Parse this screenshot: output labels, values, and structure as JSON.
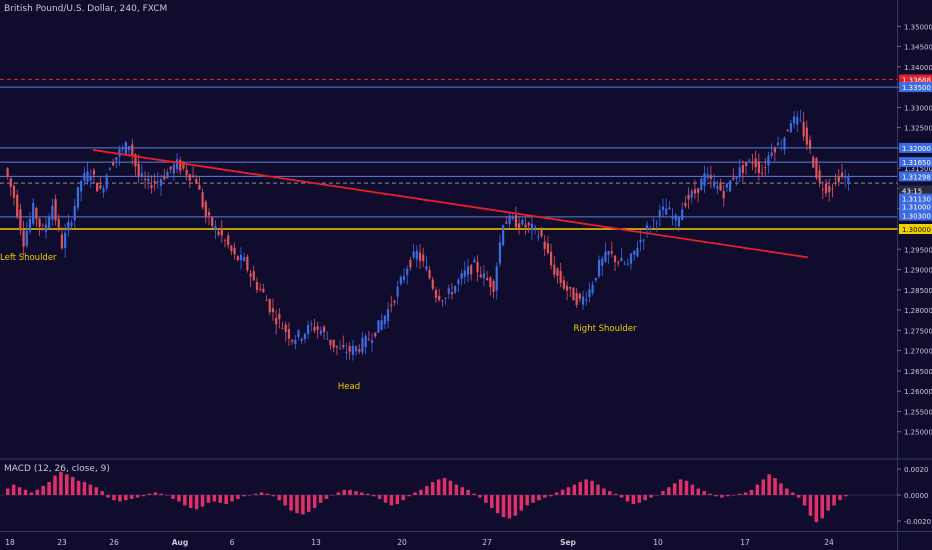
{
  "title": "British Pound/U.S. Dollar, 240, FXCM",
  "macd_label": "MACD (12, 26, close, 9)",
  "colors": {
    "background": "#0f0c2e",
    "up_candle": "#3d6be0",
    "down_candle": "#e0555a",
    "trendline": "#e8202a",
    "support_line": "#f0d000",
    "level_line": "#5f7fd6",
    "resistance_dashed": "#e02030",
    "macd_hist": "#e0306a",
    "axis_text": "#c9c9d6",
    "label_text": "#f0d000"
  },
  "chart_data": {
    "type": "candlestick",
    "title": "British Pound/U.S. Dollar, 240, FXCM",
    "symbol": "GBPUSD",
    "timeframe": "240",
    "ylim": [
      1.245,
      1.355
    ],
    "y_ticks": [
      "1.35000",
      "1.34500",
      "1.34000",
      "1.33500",
      "1.33000",
      "1.32500",
      "1.32000",
      "1.31500",
      "1.31000",
      "1.30500",
      "1.30000",
      "1.29500",
      "1.29000",
      "1.28500",
      "1.28000",
      "1.27500",
      "1.27000",
      "1.26500",
      "1.26000",
      "1.25500",
      "1.25000"
    ],
    "x_ticks": [
      "18",
      "23",
      "26",
      "Aug",
      "6",
      "13",
      "20",
      "27",
      "Sep",
      "10",
      "17",
      "24"
    ],
    "price_path": [
      1.315,
      1.308,
      1.297,
      1.305,
      1.299,
      1.306,
      1.296,
      1.303,
      1.312,
      1.314,
      1.309,
      1.316,
      1.319,
      1.321,
      1.313,
      1.311,
      1.312,
      1.314,
      1.316,
      1.314,
      1.312,
      1.303,
      1.3,
      1.297,
      1.293,
      1.292,
      1.287,
      1.284,
      1.279,
      1.276,
      1.273,
      1.274,
      1.276,
      1.275,
      1.272,
      1.27,
      1.27,
      1.271,
      1.273,
      1.276,
      1.28,
      1.285,
      1.291,
      1.294,
      1.29,
      1.284,
      1.283,
      1.286,
      1.289,
      1.291,
      1.288,
      1.286,
      1.302,
      1.302,
      1.301,
      1.3,
      1.298,
      1.291,
      1.287,
      1.284,
      1.282,
      1.285,
      1.291,
      1.294,
      1.292,
      1.291,
      1.296,
      1.3,
      1.303,
      1.305,
      1.302,
      1.307,
      1.309,
      1.313,
      1.311,
      1.309,
      1.313,
      1.315,
      1.317,
      1.314,
      1.32,
      1.321,
      1.327,
      1.326,
      1.319,
      1.311,
      1.31,
      1.313,
      1.312
    ],
    "horizontal_levels": [
      {
        "label": "1.33688",
        "price": 1.33688,
        "style": "dashed",
        "color": "#e02030"
      },
      {
        "label": "1.33500",
        "price": 1.335,
        "style": "solid",
        "color": "#5f7fd6"
      },
      {
        "label": "1.32000",
        "price": 1.32,
        "style": "solid",
        "color": "#5f7fd6"
      },
      {
        "label": "1.31650",
        "price": 1.3165,
        "style": "solid",
        "color": "#5f7fd6"
      },
      {
        "label": "1.31298",
        "price": 1.31298,
        "style": "solid",
        "color": "#5f7fd6"
      },
      {
        "label": "1.31130",
        "price": 1.3113,
        "style": "dashed",
        "color": "#8a8aa8"
      },
      {
        "label": "1.30300",
        "price": 1.303,
        "style": "solid",
        "color": "#5f7fd6"
      },
      {
        "label": "1.30000",
        "price": 1.3,
        "style": "solid",
        "color": "#f0d000"
      }
    ],
    "price_tags": [
      {
        "label": "1.33688",
        "price": 1.33688,
        "bg": "#e02030"
      },
      {
        "label": "1.33500",
        "price": 1.335,
        "bg": "#3d6be0"
      },
      {
        "label": "1.32000",
        "price": 1.32,
        "bg": "#3d6be0"
      },
      {
        "label": "1.31650",
        "price": 1.3165,
        "bg": "#3d6be0"
      },
      {
        "label": "1.31298",
        "price": 1.31298,
        "bg": "#3d6be0"
      },
      {
        "label": "43:15",
        "price": 1.3095,
        "bg": "#2a2a40"
      },
      {
        "label": "1.31130",
        "price": 1.3075,
        "bg": "#3d6be0"
      },
      {
        "label": "1.31000",
        "price": 1.3055,
        "bg": "#3d6be0"
      },
      {
        "label": "1.30300",
        "price": 1.3033,
        "bg": "#3d6be0"
      },
      {
        "label": "1.30000",
        "price": 1.3,
        "bg": "#f0d000"
      }
    ],
    "trendline": {
      "from": {
        "x": "25",
        "y": 1.3195
      },
      "to": {
        "x": "Sep 24",
        "y": 1.293
      }
    },
    "annotations": [
      "Left Shoulder",
      "Head",
      "Right Shoulder"
    ],
    "macd": {
      "label": "MACD (12, 26, close, 9)",
      "ylim": [
        -0.0027,
        0.0027
      ],
      "y_ticks": [
        "0.0020",
        "0.0000",
        "-0.0020"
      ],
      "histogram": [
        0.0005,
        0.0008,
        0.0006,
        0.0004,
        0.0002,
        0.0004,
        0.0007,
        0.001,
        0.0015,
        0.0018,
        0.0016,
        0.0014,
        0.0011,
        0.001,
        0.0008,
        0.0006,
        0.0003,
        -0.0002,
        -0.0004,
        -0.0005,
        -0.0004,
        -0.0003,
        -0.0002,
        -0.0001,
        0.0001,
        0.0002,
        0.0001,
        0.0,
        -0.0003,
        -0.0005,
        -0.0008,
        -0.001,
        -0.0011,
        -0.0009,
        -0.0006,
        -0.0005,
        -0.0006,
        -0.0007,
        -0.0005,
        -0.0003,
        -0.0001,
        0.0,
        0.0001,
        0.0002,
        0.0001,
        -0.0001,
        -0.0004,
        -0.0008,
        -0.0012,
        -0.0014,
        -0.0015,
        -0.0013,
        -0.001,
        -0.0006,
        -0.0003,
        0.0,
        0.0002,
        0.0004,
        0.0004,
        0.0003,
        0.0002,
        0.0001,
        -0.0001,
        -0.0003,
        -0.0006,
        -0.0008,
        -0.0007,
        -0.0004,
        -0.0001,
        0.0002,
        0.0004,
        0.0007,
        0.001,
        0.0012,
        0.0013,
        0.0011,
        0.0008,
        0.0006,
        0.0004,
        0.0001,
        -0.0002,
        -0.0006,
        -0.001,
        -0.0014,
        -0.0017,
        -0.0018,
        -0.0016,
        -0.0012,
        -0.0008,
        -0.0006,
        -0.0004,
        -0.0002,
        -0.0001,
        0.0002,
        0.0004,
        0.0006,
        0.0008,
        0.001,
        0.0012,
        0.0011,
        0.0008,
        0.0005,
        0.0003,
        0.0001,
        -0.0002,
        -0.0005,
        -0.0007,
        -0.0006,
        -0.0004,
        -0.0002,
        0.0,
        0.0003,
        0.0006,
        0.0009,
        0.0012,
        0.0011,
        0.0008,
        0.0005,
        0.0003,
        0.0001,
        -0.0001,
        -0.0002,
        -0.0001,
        0.0,
        0.0001,
        0.0002,
        0.0004,
        0.0008,
        0.0012,
        0.0016,
        0.0013,
        0.0009,
        0.0005,
        0.0002,
        -0.0002,
        -0.0008,
        -0.0016,
        -0.0021,
        -0.0018,
        -0.0012,
        -0.0008,
        -0.0004,
        -0.0001
      ]
    }
  }
}
